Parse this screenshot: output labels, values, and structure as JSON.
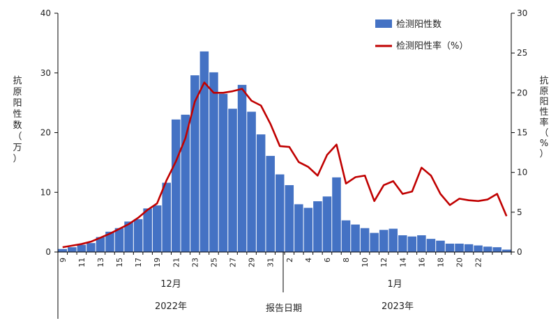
{
  "chart_data": {
    "type": "bar+line",
    "series": [
      {
        "name": "检测阳性数",
        "kind": "bar",
        "axis": "left",
        "color": "#4472C4",
        "values": [
          0.5,
          0.8,
          1.2,
          1.5,
          2.5,
          3.4,
          4.0,
          5.1,
          5.5,
          7.3,
          7.8,
          11.6,
          22.2,
          23.0,
          29.6,
          33.6,
          30.1,
          26.5,
          24.0,
          28.0,
          23.5,
          19.7,
          16.1,
          13.0,
          11.2,
          8.0,
          7.4,
          8.5,
          9.3,
          12.5,
          5.3,
          4.6,
          4.0,
          3.2,
          3.7,
          3.9,
          2.8,
          2.6,
          2.8,
          2.2,
          1.9,
          1.4,
          1.4,
          1.3,
          1.1,
          0.9,
          0.8,
          0.4
        ]
      },
      {
        "name": "检测阳性率（%）",
        "kind": "line",
        "axis": "right",
        "color": "#C00000",
        "values": [
          0.6,
          0.8,
          1.0,
          1.3,
          1.8,
          2.3,
          2.9,
          3.5,
          4.3,
          5.3,
          6.1,
          9.0,
          11.4,
          14.3,
          18.9,
          21.3,
          20.0,
          20.0,
          20.2,
          20.5,
          19.0,
          18.4,
          16.1,
          13.3,
          13.2,
          11.3,
          10.7,
          9.6,
          12.2,
          13.5,
          8.6,
          9.4,
          9.6,
          6.4,
          8.4,
          8.9,
          7.3,
          7.6,
          10.6,
          9.6,
          7.3,
          5.9,
          6.7,
          6.5,
          6.4,
          6.6,
          7.3,
          4.5
        ]
      }
    ],
    "x_tick_labels": [
      "9",
      "11",
      "13",
      "15",
      "17",
      "19",
      "21",
      "23",
      "25",
      "27",
      "29",
      "31",
      "2",
      "4",
      "6",
      "8",
      "10",
      "12",
      "14",
      "16",
      "18",
      "20",
      "22"
    ],
    "y_left": {
      "label": "抗原阳性数（万）",
      "ticks": [
        "0",
        "10",
        "20",
        "30",
        "40"
      ],
      "range": [
        0,
        40
      ]
    },
    "y_right": {
      "label": "抗原阳性率（%）",
      "ticks": [
        "0",
        "5",
        "10",
        "15",
        "20",
        "25",
        "30"
      ],
      "range": [
        0,
        30
      ]
    },
    "months": [
      "12月",
      "1月"
    ],
    "years": [
      "2022年",
      "2023年"
    ],
    "xlabel": "报告日期",
    "legend_position": "top-right",
    "grid": false
  }
}
